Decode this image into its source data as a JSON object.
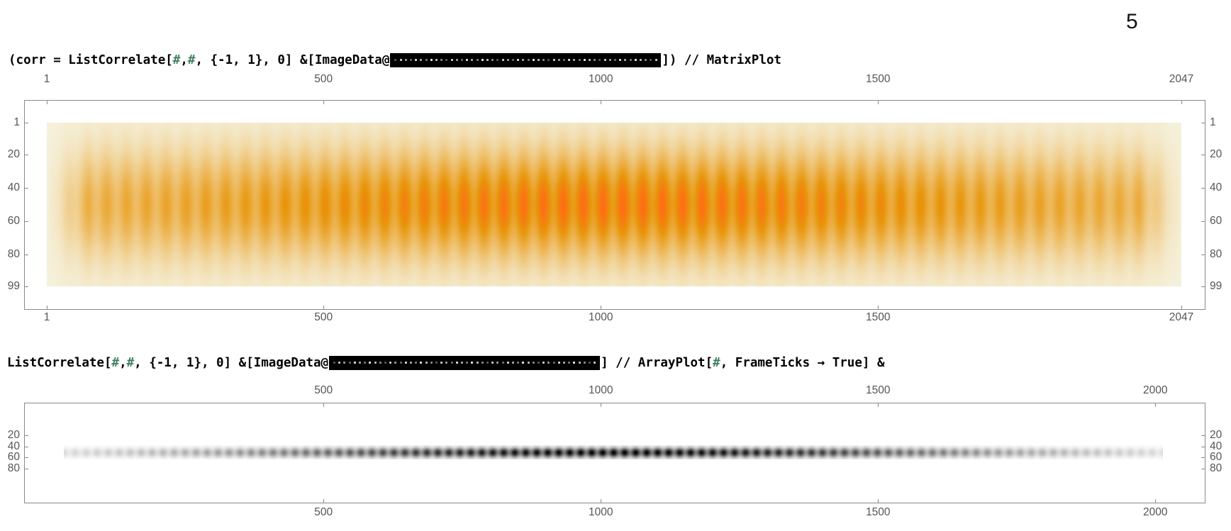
{
  "slide_number": "5",
  "line1": {
    "prefix": "(corr = ListCorrelate[",
    "h1": "#",
    "sep1": ", ",
    "h2": "#",
    "mid": ", {-1, 1}, 0] &[ImageData@",
    "suffix": "]) // MatrixPlot"
  },
  "line2": {
    "prefix": "ListCorrelate[",
    "h1": "#",
    "sep1": ", ",
    "h2": "#",
    "mid": ", {-1, 1}, 0] &[ImageData@",
    "suffix": "] // ArrayPlot[",
    "h3": "#",
    "end": ", FrameTicks → True] &"
  },
  "matrix_plot": {
    "x_ticks": [
      "1",
      "500",
      "1000",
      "1500",
      "2047"
    ],
    "y_ticks": [
      "1",
      "20",
      "40",
      "60",
      "80",
      "99"
    ],
    "colors": {
      "low": "#f5f1dc",
      "mid": "#e89a10",
      "high": "#ff7a10"
    }
  },
  "array_plot": {
    "x_ticks": [
      "500",
      "1000",
      "1500",
      "2000"
    ],
    "y_ticks": [
      "20",
      "40",
      "60",
      "80"
    ],
    "colors": {
      "low": "#ffffff",
      "high": "#000000"
    }
  }
}
